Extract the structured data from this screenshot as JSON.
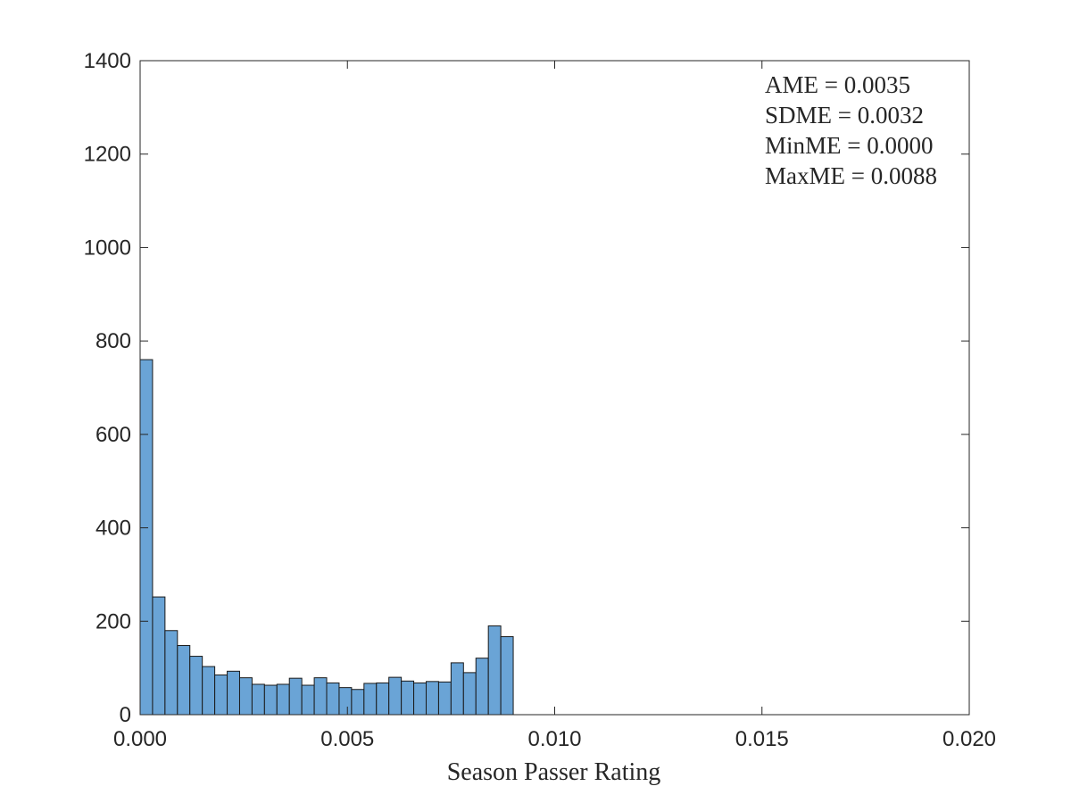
{
  "chart_data": {
    "type": "bar",
    "title": "",
    "xlabel": "Season Passer Rating",
    "ylabel": "",
    "xlim": [
      0,
      0.02
    ],
    "ylim": [
      0,
      1400
    ],
    "xticks": [
      "0.000",
      "0.005",
      "0.010",
      "0.015",
      "0.020"
    ],
    "xtick_values": [
      0,
      0.005,
      0.01,
      0.015,
      0.02
    ],
    "yticks": [
      "0",
      "200",
      "400",
      "600",
      "800",
      "1000",
      "1200",
      "1400"
    ],
    "ytick_values": [
      0,
      200,
      400,
      600,
      800,
      1000,
      1200,
      1400
    ],
    "bin_width": 0.0003,
    "bin_starts": [
      0.0,
      0.0003,
      0.0006,
      0.0009,
      0.0012,
      0.0015,
      0.0018,
      0.0021,
      0.0024,
      0.0027,
      0.003,
      0.0033,
      0.0036,
      0.0039,
      0.0042,
      0.0045,
      0.0048,
      0.0051,
      0.0054,
      0.0057,
      0.006,
      0.0063,
      0.0066,
      0.0069,
      0.0072,
      0.0075,
      0.0078,
      0.0081,
      0.0084,
      0.0087
    ],
    "values": [
      760,
      252,
      180,
      148,
      125,
      103,
      85,
      93,
      79,
      65,
      63,
      65,
      78,
      63,
      79,
      68,
      58,
      54,
      67,
      68,
      80,
      72,
      68,
      71,
      70,
      111,
      90,
      121,
      190,
      167
    ],
    "grid": false,
    "bar_color": "#6aa4d6",
    "annotations": [
      "AME = 0.0035",
      "SDME = 0.0032",
      "MinME = 0.0000",
      "MaxME = 0.0088"
    ]
  }
}
